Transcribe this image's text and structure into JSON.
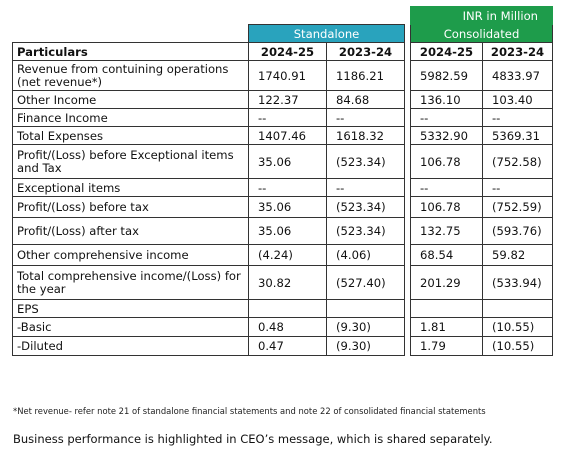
{
  "unit_label": "INR in Million",
  "groups": {
    "standalone": "Standalone",
    "consolidated": "Consolidated"
  },
  "header": {
    "particulars": "Particulars",
    "years": [
      "2024-25",
      "2023-24",
      "2024-25",
      "2023-24"
    ]
  },
  "rows": [
    {
      "label": "Revenue from contuining operations (net revenue*)",
      "values": [
        "1740.91",
        "1186.21",
        "5982.59",
        "4833.97"
      ]
    },
    {
      "label": "Other Income",
      "values": [
        "122.37",
        "84.68",
        "136.10",
        "103.40"
      ]
    },
    {
      "label": "Finance Income",
      "values": [
        "--",
        "--",
        "--",
        "--"
      ]
    },
    {
      "label": "Total Expenses",
      "values": [
        "1407.46",
        "1618.32",
        "5332.90",
        "5369.31"
      ]
    },
    {
      "label": "Profit/(Loss) before Exceptional items and Tax",
      "values": [
        "35.06",
        "(523.34)",
        "106.78",
        "(752.58)"
      ]
    },
    {
      "label": "Exceptional items",
      "values": [
        "--",
        "--",
        "--",
        "--"
      ]
    },
    {
      "label": "Profit/(Loss) before tax",
      "values": [
        "35.06",
        "(523.34)",
        "106.78",
        "(752.59)"
      ]
    },
    {
      "label": "Profit/(Loss) after tax",
      "values": [
        "35.06",
        "(523.34)",
        "132.75",
        "(593.76)"
      ]
    },
    {
      "label": "Other comprehensive income",
      "values": [
        "(4.24)",
        "(4.06)",
        "68.54",
        "59.82"
      ]
    },
    {
      "label": "Total comprehensive income/(Loss) for the year",
      "values": [
        "30.82",
        "(527.40)",
        "201.29",
        "(533.94)"
      ]
    },
    {
      "label": "EPS",
      "values": [
        "",
        "",
        "",
        ""
      ]
    },
    {
      "label": "-Basic",
      "values": [
        "0.48",
        "(9.30)",
        "1.81",
        "(10.55)"
      ]
    },
    {
      "label": "-Diluted",
      "values": [
        "0.47",
        "(9.30)",
        "1.79",
        "(10.55)"
      ]
    }
  ],
  "footnote": "*Net revenue- refer note 21 of standalone financial statements and note 22 of consolidated financial statements",
  "caption": "Business performance is highlighted in CEO’s message, which is shared separately."
}
